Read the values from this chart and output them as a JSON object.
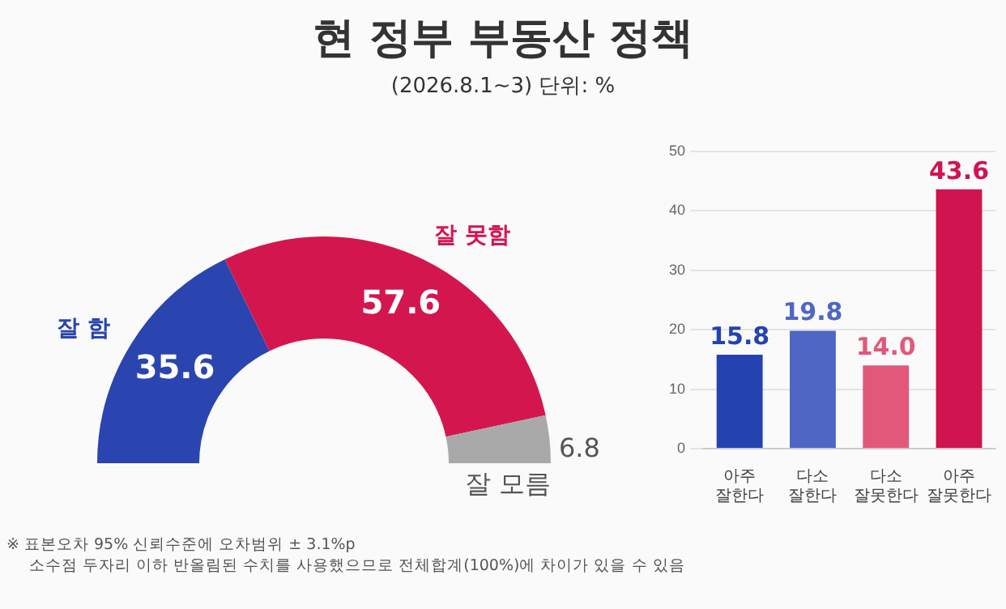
{
  "chart_data": [
    {
      "type": "donut",
      "title": "현 정부 부동산 정책",
      "subtitle": "(2026.8.1~3) 단위: %",
      "categories": [
        "잘 함",
        "잘 못함",
        "잘 모름"
      ],
      "values": [
        35.6,
        57.6,
        6.8
      ],
      "colors": [
        "#2a45b0",
        "#d4164f",
        "#a9a9a9"
      ],
      "data_labels": true,
      "legend": false,
      "annotations": [
        "※ 표본오차 95% 신뢰수준에 오차범위 ± 3.1%p",
        "소수점 두자리 이하 반올림된 수치를 사용했으므로 전체합계(100%)에 차이가 있을 수 있음"
      ]
    },
    {
      "type": "bar",
      "categories": [
        "아주 잘한다",
        "다소 잘한다",
        "다소 잘못한다",
        "아주 잘못한다"
      ],
      "values": [
        15.8,
        19.8,
        14.0,
        43.6
      ],
      "value_labels": [
        "15.8",
        "19.8",
        "14.0",
        "43.6"
      ],
      "colors": [
        "#2443b0",
        "#4f66c4",
        "#e2587a",
        "#d01450"
      ],
      "ylim": [
        0,
        50
      ],
      "yticks": [
        0,
        10,
        20,
        30,
        40,
        50
      ],
      "grid": "y",
      "legend": false
    }
  ]
}
